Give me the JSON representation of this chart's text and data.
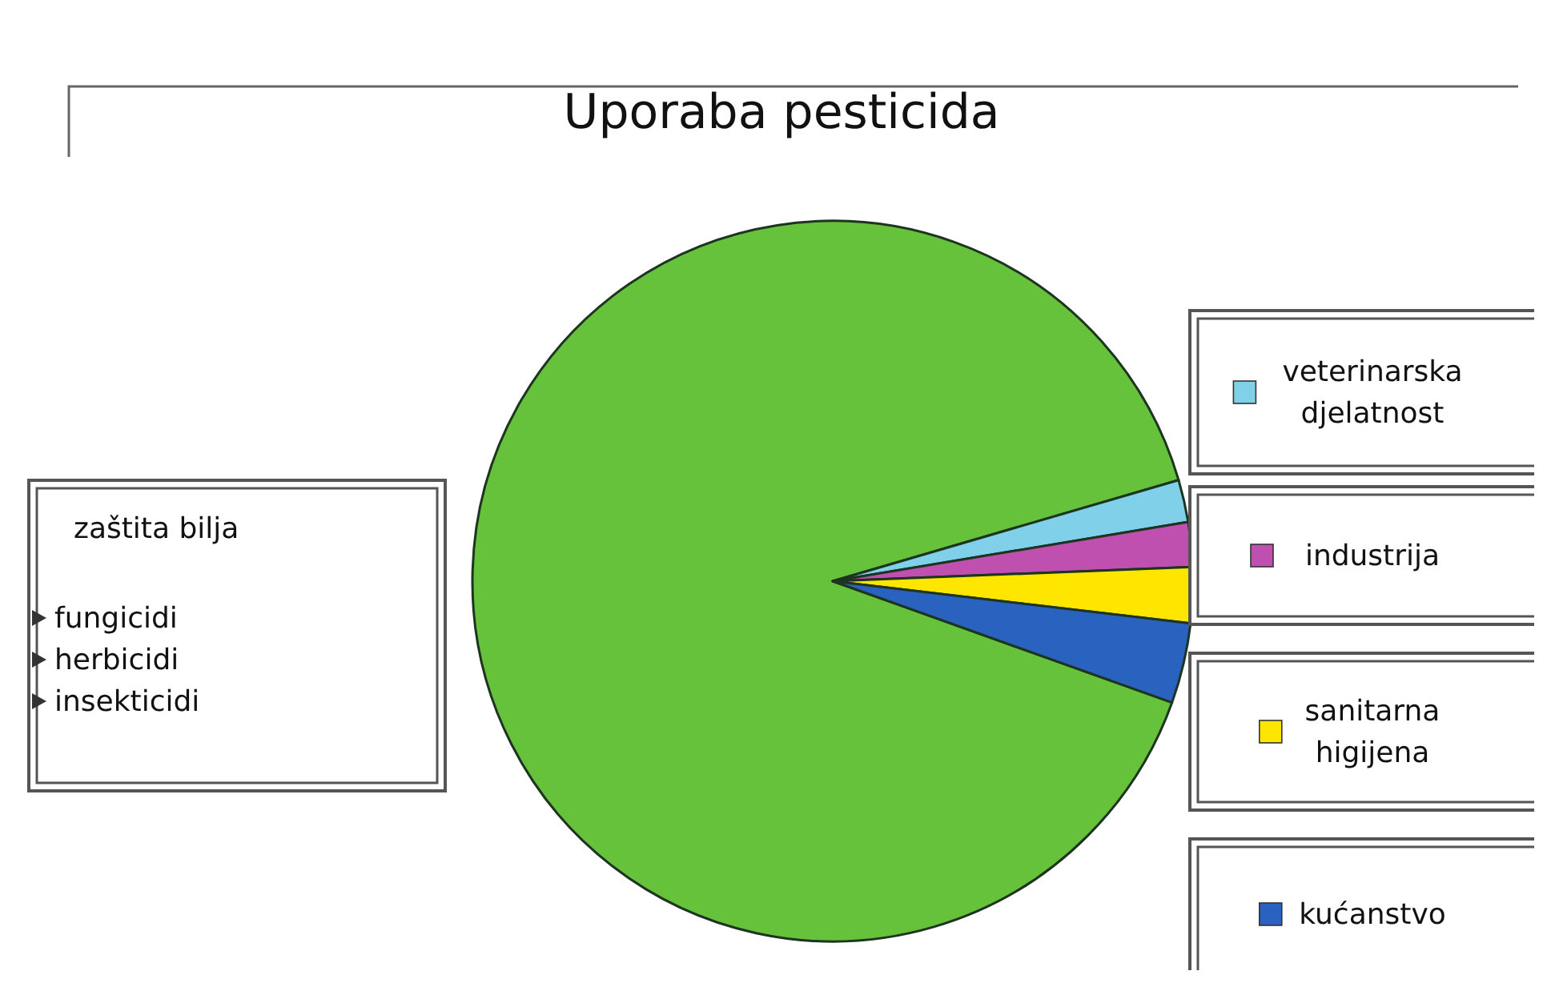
{
  "chart_data": {
    "type": "pie",
    "title": "Uporaba pesticida",
    "categories": [
      "zaštita bilja",
      "veterinarska djelatnost",
      "industrija",
      "sanitarna higijena",
      "kućanstvo"
    ],
    "values": [
      90,
      1.9,
      2,
      2.5,
      3.6
    ],
    "colors": [
      "#66c23a",
      "#7fd0e8",
      "#c050b0",
      "#ffe600",
      "#2a62c0"
    ],
    "annotations": [
      "fungicidi",
      "herbicidi",
      "insekticidi"
    ],
    "legend": "right"
  }
}
